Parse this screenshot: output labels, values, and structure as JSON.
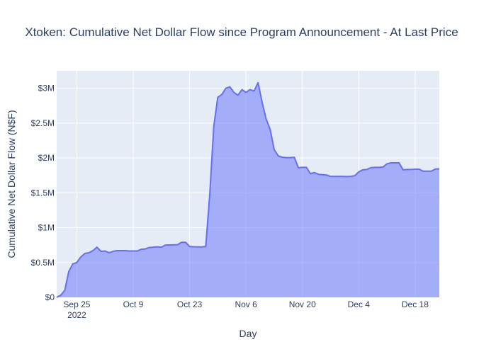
{
  "chart_data": {
    "type": "area",
    "title": "Xtoken: Cumulative Net Dollar Flow since Program Announcement - At Last Price",
    "xlabel": "Day",
    "ylabel": "Cumulative Net Dollar Flow (N$F)",
    "x_tick_labels": [
      "Sep 25",
      "Oct 9",
      "Oct 23",
      "Nov 6",
      "Nov 20",
      "Dec 4",
      "Dec 18"
    ],
    "x_tick_year": "2022",
    "y_tick_labels": [
      "$0",
      "$0.5M",
      "$1M",
      "$1.5M",
      "$2M",
      "$2.5M",
      "$3M"
    ],
    "y_tick_values": [
      0,
      500000,
      1000000,
      1500000,
      2000000,
      2500000,
      3000000
    ],
    "xlim": [
      "2022-09-20",
      "2022-12-24"
    ],
    "ylim": [
      0,
      3250000
    ],
    "grid": true,
    "colors": {
      "line": "#636efa",
      "fill": "rgba(99,110,250,0.5)",
      "plot_bg": "#e5ecf6",
      "grid": "#ffffff"
    },
    "series": [
      {
        "x": [
          "2022-09-20",
          "2022-09-21",
          "2022-09-22",
          "2022-09-23",
          "2022-09-24",
          "2022-09-25",
          "2022-09-26",
          "2022-09-27",
          "2022-09-28",
          "2022-09-29",
          "2022-09-30",
          "2022-10-01",
          "2022-10-02",
          "2022-10-03",
          "2022-10-04",
          "2022-10-05",
          "2022-10-06",
          "2022-10-07",
          "2022-10-08",
          "2022-10-09",
          "2022-10-10",
          "2022-10-11",
          "2022-10-12",
          "2022-10-13",
          "2022-10-14",
          "2022-10-15",
          "2022-10-16",
          "2022-10-17",
          "2022-10-18",
          "2022-10-19",
          "2022-10-20",
          "2022-10-21",
          "2022-10-22",
          "2022-10-23",
          "2022-10-24",
          "2022-10-25",
          "2022-10-26",
          "2022-10-27",
          "2022-10-28",
          "2022-10-29",
          "2022-10-30",
          "2022-10-31",
          "2022-11-01",
          "2022-11-02",
          "2022-11-03",
          "2022-11-04",
          "2022-11-05",
          "2022-11-06",
          "2022-11-07",
          "2022-11-08",
          "2022-11-09",
          "2022-11-10",
          "2022-11-11",
          "2022-11-12",
          "2022-11-13",
          "2022-11-14",
          "2022-11-15",
          "2022-11-16",
          "2022-11-17",
          "2022-11-18",
          "2022-11-19",
          "2022-11-20",
          "2022-11-21",
          "2022-11-22",
          "2022-11-23",
          "2022-11-24",
          "2022-11-25",
          "2022-11-26",
          "2022-11-27",
          "2022-11-28",
          "2022-11-29",
          "2022-11-30",
          "2022-12-01",
          "2022-12-02",
          "2022-12-03",
          "2022-12-04",
          "2022-12-05",
          "2022-12-06",
          "2022-12-07",
          "2022-12-08",
          "2022-12-09",
          "2022-12-10",
          "2022-12-11",
          "2022-12-12",
          "2022-12-13",
          "2022-12-14",
          "2022-12-15",
          "2022-12-16",
          "2022-12-17",
          "2022-12-18",
          "2022-12-19",
          "2022-12-20",
          "2022-12-21",
          "2022-12-22",
          "2022-12-23",
          "2022-12-24"
        ],
        "values": [
          0,
          30000,
          100000,
          370000,
          480000,
          500000,
          580000,
          630000,
          640000,
          670000,
          720000,
          660000,
          665000,
          640000,
          660000,
          670000,
          670000,
          670000,
          665000,
          665000,
          665000,
          690000,
          695000,
          715000,
          720000,
          725000,
          720000,
          750000,
          752000,
          753000,
          755000,
          790000,
          790000,
          730000,
          725000,
          724000,
          722000,
          730000,
          1470000,
          2450000,
          2870000,
          2910000,
          3000000,
          3020000,
          2940000,
          2900000,
          2980000,
          2940000,
          2980000,
          2960000,
          3080000,
          2800000,
          2560000,
          2410000,
          2120000,
          2030000,
          2010000,
          2005000,
          2005000,
          2010000,
          1860000,
          1865000,
          1865000,
          1775000,
          1790000,
          1765000,
          1760000,
          1755000,
          1735000,
          1735000,
          1735000,
          1735000,
          1733000,
          1735000,
          1745000,
          1800000,
          1830000,
          1835000,
          1860000,
          1865000,
          1865000,
          1870000,
          1915000,
          1930000,
          1930000,
          1930000,
          1830000,
          1835000,
          1835000,
          1838000,
          1838000,
          1810000,
          1810000,
          1810000,
          1840000,
          1845000
        ]
      }
    ]
  }
}
